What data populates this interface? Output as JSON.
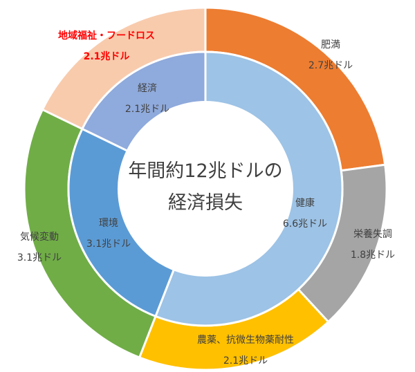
{
  "chart_data": {
    "type": "donut",
    "center_text": [
      "年間約12兆ドルの",
      "経済損失"
    ],
    "unit": "兆ドル",
    "inner_ring": [
      {
        "name": "健康",
        "value": 6.6,
        "label": "6.6兆ドル",
        "color": "#9dc3e6"
      },
      {
        "name": "環境",
        "value": 3.1,
        "label": "3.1兆ドル",
        "color": "#5b9bd5"
      },
      {
        "name": "経済",
        "value": 2.1,
        "label": "2.1兆ドル",
        "color": "#8faadc"
      }
    ],
    "outer_ring": [
      {
        "name": "肥満",
        "value": 2.7,
        "label": "2.7兆ドル",
        "color": "#ed7d31"
      },
      {
        "name": "栄養失調",
        "value": 1.8,
        "label": "1.8兆ドル",
        "color": "#a5a5a5"
      },
      {
        "name": "農薬、抗微生物薬耐性",
        "value": 2.1,
        "label": "2.1兆ドル",
        "color": "#ffc000"
      },
      {
        "name": "気候変動",
        "value": 3.1,
        "label": "3.1兆ドル",
        "color": "#70ad47"
      },
      {
        "name": "地域福祉・フードロス",
        "value": 2.1,
        "label": "2.1兆ドル",
        "color": "#f8cbad",
        "highlight": true
      }
    ],
    "highlight_color": "#ff0000"
  }
}
